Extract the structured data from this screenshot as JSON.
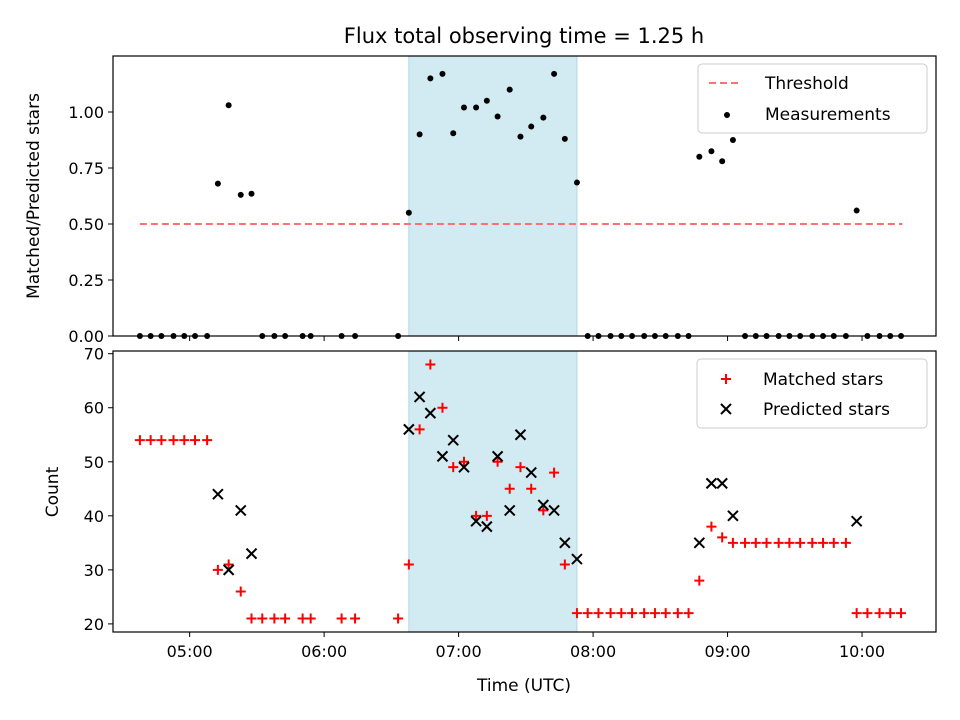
{
  "chart_data": {
    "type": "scatter",
    "title": "Flux total observing time = 1.25 h",
    "xlabel": "Time (UTC)",
    "x_ticks": [
      "05:00",
      "06:00",
      "07:00",
      "08:00",
      "09:00",
      "10:00"
    ],
    "x_tick_hours": [
      5,
      6,
      7,
      8,
      9,
      10
    ],
    "xlim_hours": [
      4.43,
      10.55
    ],
    "shaded_interval_hours": [
      6.63,
      7.88
    ],
    "shade_color": "#add8e6",
    "top": {
      "ylabel": "Matched/Predicted stars",
      "ylim": [
        0,
        1.25
      ],
      "yticks": [
        0.0,
        0.25,
        0.5,
        0.75,
        1.0
      ],
      "ytick_labels": [
        "0.00",
        "0.25",
        "0.50",
        "0.75",
        "1.00"
      ],
      "threshold": {
        "name": "Threshold",
        "value": 0.5,
        "x_range_hours": [
          4.63,
          10.3
        ],
        "color": "#ff7070"
      },
      "measurements": {
        "name": "Measurements",
        "color": "#000000",
        "points": [
          [
            4.63,
            0
          ],
          [
            4.71,
            0
          ],
          [
            4.79,
            0
          ],
          [
            4.88,
            0
          ],
          [
            4.96,
            0
          ],
          [
            5.04,
            0
          ],
          [
            5.13,
            0
          ],
          [
            5.21,
            0.68
          ],
          [
            5.29,
            1.03
          ],
          [
            5.38,
            0.63
          ],
          [
            5.46,
            0.635
          ],
          [
            5.54,
            0
          ],
          [
            5.63,
            0
          ],
          [
            5.71,
            0
          ],
          [
            5.84,
            0
          ],
          [
            5.9,
            0
          ],
          [
            6.13,
            0
          ],
          [
            6.23,
            0
          ],
          [
            6.55,
            0
          ],
          [
            6.63,
            0.55
          ],
          [
            6.71,
            0.9
          ],
          [
            6.79,
            1.15
          ],
          [
            6.88,
            1.17
          ],
          [
            6.96,
            0.905
          ],
          [
            7.04,
            1.02
          ],
          [
            7.13,
            1.02
          ],
          [
            7.21,
            1.05
          ],
          [
            7.29,
            0.98
          ],
          [
            7.38,
            1.1
          ],
          [
            7.46,
            0.89
          ],
          [
            7.54,
            0.935
          ],
          [
            7.63,
            0.975
          ],
          [
            7.71,
            1.17
          ],
          [
            7.79,
            0.88
          ],
          [
            7.88,
            0.685
          ],
          [
            7.96,
            0
          ],
          [
            8.04,
            0
          ],
          [
            8.13,
            0
          ],
          [
            8.21,
            0
          ],
          [
            8.29,
            0
          ],
          [
            8.38,
            0
          ],
          [
            8.46,
            0
          ],
          [
            8.54,
            0
          ],
          [
            8.63,
            0
          ],
          [
            8.71,
            0
          ],
          [
            8.79,
            0.8
          ],
          [
            8.88,
            0.825
          ],
          [
            8.96,
            0.78
          ],
          [
            9.04,
            0.875
          ],
          [
            9.13,
            0
          ],
          [
            9.21,
            0
          ],
          [
            9.29,
            0
          ],
          [
            9.38,
            0
          ],
          [
            9.46,
            0
          ],
          [
            9.54,
            0
          ],
          [
            9.63,
            0
          ],
          [
            9.71,
            0
          ],
          [
            9.79,
            0
          ],
          [
            9.88,
            0
          ],
          [
            9.96,
            0.56
          ],
          [
            10.04,
            0
          ],
          [
            10.13,
            0
          ],
          [
            10.21,
            0
          ],
          [
            10.29,
            0
          ]
        ]
      },
      "legend_position": "upper right"
    },
    "bottom": {
      "ylabel": "Count",
      "ylim": [
        18.5,
        70.5
      ],
      "yticks": [
        20,
        30,
        40,
        50,
        60,
        70
      ],
      "ytick_labels": [
        "20",
        "30",
        "40",
        "50",
        "60",
        "70"
      ],
      "series": [
        {
          "name": "Matched stars",
          "marker": "plus",
          "color": "#ff0000",
          "points": [
            [
              4.63,
              54
            ],
            [
              4.71,
              54
            ],
            [
              4.79,
              54
            ],
            [
              4.88,
              54
            ],
            [
              4.96,
              54
            ],
            [
              5.04,
              54
            ],
            [
              5.13,
              54
            ],
            [
              5.21,
              30
            ],
            [
              5.29,
              31
            ],
            [
              5.38,
              26
            ],
            [
              5.46,
              21
            ],
            [
              5.54,
              21
            ],
            [
              5.63,
              21
            ],
            [
              5.71,
              21
            ],
            [
              5.84,
              21
            ],
            [
              5.9,
              21
            ],
            [
              6.13,
              21
            ],
            [
              6.23,
              21
            ],
            [
              6.55,
              21
            ],
            [
              6.63,
              31
            ],
            [
              6.71,
              56
            ],
            [
              6.79,
              68
            ],
            [
              6.88,
              60
            ],
            [
              6.96,
              49
            ],
            [
              7.04,
              50
            ],
            [
              7.13,
              40
            ],
            [
              7.21,
              40
            ],
            [
              7.29,
              50
            ],
            [
              7.38,
              45
            ],
            [
              7.46,
              49
            ],
            [
              7.54,
              45
            ],
            [
              7.63,
              41
            ],
            [
              7.71,
              48
            ],
            [
              7.79,
              31
            ],
            [
              7.88,
              22
            ],
            [
              7.96,
              22
            ],
            [
              8.04,
              22
            ],
            [
              8.13,
              22
            ],
            [
              8.21,
              22
            ],
            [
              8.29,
              22
            ],
            [
              8.38,
              22
            ],
            [
              8.46,
              22
            ],
            [
              8.54,
              22
            ],
            [
              8.63,
              22
            ],
            [
              8.71,
              22
            ],
            [
              8.79,
              28
            ],
            [
              8.88,
              38
            ],
            [
              8.96,
              36
            ],
            [
              9.04,
              35
            ],
            [
              9.13,
              35
            ],
            [
              9.21,
              35
            ],
            [
              9.29,
              35
            ],
            [
              9.38,
              35
            ],
            [
              9.46,
              35
            ],
            [
              9.54,
              35
            ],
            [
              9.63,
              35
            ],
            [
              9.71,
              35
            ],
            [
              9.79,
              35
            ],
            [
              9.88,
              35
            ],
            [
              9.96,
              22
            ],
            [
              10.04,
              22
            ],
            [
              10.13,
              22
            ],
            [
              10.21,
              22
            ],
            [
              10.29,
              22
            ]
          ]
        },
        {
          "name": "Predicted stars",
          "marker": "x",
          "color": "#000000",
          "points": [
            [
              5.21,
              44
            ],
            [
              5.29,
              30
            ],
            [
              5.38,
              41
            ],
            [
              5.46,
              33
            ],
            [
              6.63,
              56
            ],
            [
              6.71,
              62
            ],
            [
              6.79,
              59
            ],
            [
              6.88,
              51
            ],
            [
              6.96,
              54
            ],
            [
              7.04,
              49
            ],
            [
              7.13,
              39
            ],
            [
              7.21,
              38
            ],
            [
              7.29,
              51
            ],
            [
              7.38,
              41
            ],
            [
              7.46,
              55
            ],
            [
              7.54,
              48
            ],
            [
              7.63,
              42
            ],
            [
              7.71,
              41
            ],
            [
              7.79,
              35
            ],
            [
              7.88,
              32
            ],
            [
              8.79,
              35
            ],
            [
              8.88,
              46
            ],
            [
              8.96,
              46
            ],
            [
              9.04,
              40
            ],
            [
              9.96,
              39
            ]
          ]
        }
      ],
      "legend_position": "upper right"
    }
  }
}
